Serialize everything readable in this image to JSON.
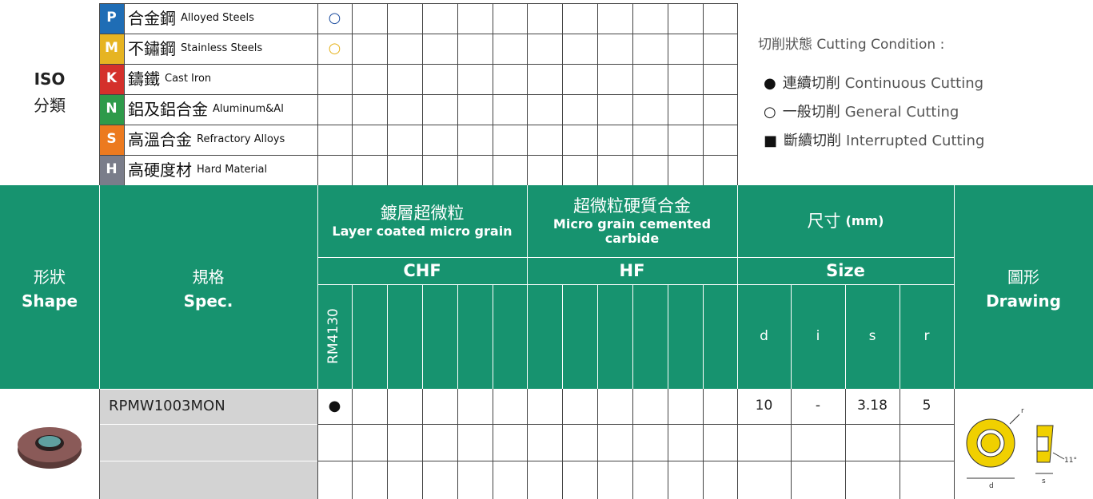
{
  "iso": {
    "title": "ISO",
    "subtitle": "分類",
    "materials": [
      {
        "letter": "P",
        "color": "#1f6db5",
        "name": "合金鋼",
        "name_en": "Alloyed Steels",
        "mark": "○",
        "mark_color": "#1f4fa0"
      },
      {
        "letter": "M",
        "color": "#e6b422",
        "name": "不鏽鋼",
        "name_en": "Stainless Steels",
        "mark": "○",
        "mark_color": "#e6b422"
      },
      {
        "letter": "K",
        "color": "#d4302b",
        "name": "鑄鐵",
        "name_en": "Cast Iron"
      },
      {
        "letter": "N",
        "color": "#2e9a4a",
        "name": "鋁及鋁合金",
        "name_en": "Aluminum&Al"
      },
      {
        "letter": "S",
        "color": "#ec7a1f",
        "name": "高溫合金",
        "name_en": "Refractory Alloys"
      },
      {
        "letter": "H",
        "color": "#7a7d8a",
        "name": "高硬度材",
        "name_en": "Hard Material"
      }
    ]
  },
  "legend": {
    "title": "切削狀態 Cutting Condition :",
    "items": [
      {
        "symbol": "●",
        "name": "連續切削",
        "name_en": "Continuous Cutting"
      },
      {
        "symbol": "○",
        "name": "一般切削",
        "name_en": "General Cutting"
      },
      {
        "symbol": "■",
        "name": "斷續切削",
        "name_en": "Interrupted Cutting"
      }
    ]
  },
  "header": {
    "shape": "形狀",
    "shape_en": "Shape",
    "spec": "規格",
    "spec_en": "Spec.",
    "groups": [
      {
        "name": "鍍層超微粒",
        "name_en": "Layer coated micro grain",
        "code": "CHF"
      },
      {
        "name": "超微粒硬質合金",
        "name_en": "Micro grain cemented carbide",
        "code": "HF"
      }
    ],
    "grades": [
      "RM4130"
    ],
    "size": "尺寸",
    "size_unit": "(mm)",
    "size_en": "Size",
    "size_cols": [
      "d",
      "i",
      "s",
      "r"
    ],
    "drawing": "圖形",
    "drawing_en": "Drawing"
  },
  "rows": [
    {
      "spec": "RPMW1003MON",
      "marks": [
        "●"
      ],
      "size": [
        10,
        "-",
        3.18,
        5
      ]
    }
  ],
  "drawing_labels": {
    "r": "r",
    "d": "d",
    "s": "s",
    "angle": "11°"
  }
}
